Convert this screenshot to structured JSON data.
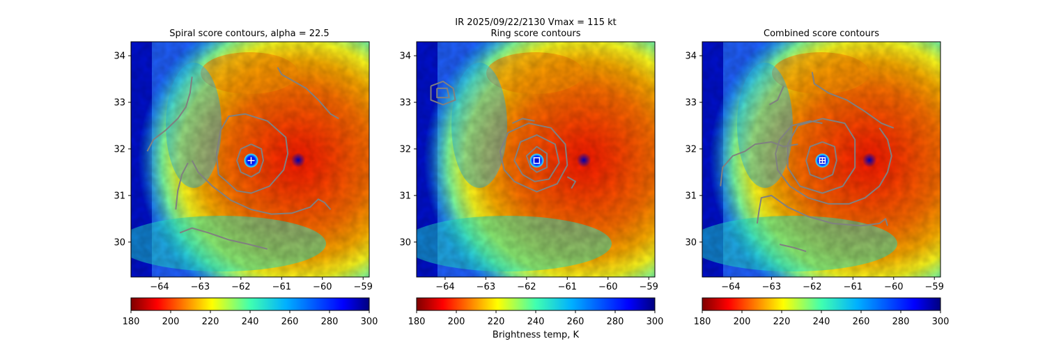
{
  "suptitle": {
    "line1": "IR  2025/09/22/2130    Vmax = 115 kt"
  },
  "chart_data": [
    {
      "type": "heatmap",
      "title": "Spiral score contours, alpha = 22.5",
      "xlim": [
        -64.7,
        -58.85
      ],
      "ylim": [
        29.25,
        34.3
      ],
      "xticks": [
        -64,
        -63,
        -62,
        -61,
        -60,
        -59
      ],
      "yticks": [
        30,
        31,
        32,
        33,
        34
      ],
      "colormap": "jet_r",
      "colorbar": {
        "ticks": [
          180,
          200,
          220,
          240,
          260,
          280,
          300
        ],
        "range": [
          180,
          300
        ]
      },
      "storm_center": {
        "x": -61.75,
        "y": 31.75,
        "marker": "plus"
      },
      "contour_color": "#808080",
      "contours": [
        [
          [
            -61.1,
            33.75
          ],
          [
            -61,
            33.6
          ],
          [
            -60.7,
            33.45
          ],
          [
            -60.4,
            33.3
          ],
          [
            -60.1,
            33.05
          ],
          [
            -59.8,
            32.75
          ],
          [
            -59.6,
            32.65
          ]
        ],
        [
          [
            -63.2,
            33.55
          ],
          [
            -63.25,
            33.2
          ],
          [
            -63.35,
            32.9
          ],
          [
            -63.55,
            32.65
          ],
          [
            -63.85,
            32.4
          ],
          [
            -64.15,
            32.2
          ],
          [
            -64.3,
            31.95
          ]
        ],
        [
          [
            -62.35,
            31.3
          ],
          [
            -62.55,
            31.45
          ],
          [
            -62.6,
            31.9
          ],
          [
            -62.5,
            32.4
          ],
          [
            -62.3,
            32.7
          ],
          [
            -61.9,
            32.75
          ],
          [
            -61.35,
            32.6
          ],
          [
            -60.9,
            32.25
          ],
          [
            -60.85,
            31.9
          ],
          [
            -60.95,
            31.55
          ],
          [
            -61.3,
            31.2
          ],
          [
            -61.75,
            31.05
          ],
          [
            -62.1,
            31.1
          ],
          [
            -62.35,
            31.3
          ]
        ],
        [
          [
            -61.75,
            32.1
          ],
          [
            -61.5,
            32.0
          ],
          [
            -61.45,
            31.75
          ],
          [
            -61.55,
            31.5
          ],
          [
            -61.75,
            31.4
          ],
          [
            -62.0,
            31.5
          ],
          [
            -62.1,
            31.75
          ],
          [
            -62.0,
            32.0
          ],
          [
            -61.75,
            32.1
          ]
        ],
        [
          [
            -63.2,
            31.75
          ],
          [
            -63.05,
            31.5
          ],
          [
            -62.7,
            31.2
          ],
          [
            -62.25,
            30.9
          ],
          [
            -61.75,
            30.7
          ],
          [
            -61.25,
            30.6
          ],
          [
            -60.75,
            30.62
          ],
          [
            -60.3,
            30.75
          ],
          [
            -60.1,
            30.92
          ],
          [
            -59.95,
            30.85
          ],
          [
            -59.8,
            30.7
          ]
        ],
        [
          [
            -63.3,
            31.7
          ],
          [
            -63.45,
            31.45
          ],
          [
            -63.55,
            31.1
          ],
          [
            -63.6,
            30.7
          ]
        ],
        [
          [
            -63.5,
            30.2
          ],
          [
            -63.2,
            30.3
          ],
          [
            -62.8,
            30.2
          ],
          [
            -62.3,
            30.05
          ],
          [
            -61.8,
            29.95
          ],
          [
            -61.35,
            29.85
          ]
        ]
      ]
    },
    {
      "type": "heatmap",
      "title": "Ring score contours",
      "xlim": [
        -64.7,
        -58.85
      ],
      "ylim": [
        29.25,
        34.3
      ],
      "xticks": [
        -64,
        -63,
        -62,
        -61,
        -60,
        -59
      ],
      "yticks": [
        30,
        31,
        32,
        33,
        34
      ],
      "colormap": "jet_r",
      "colorbar": {
        "ticks": [
          180,
          200,
          220,
          240,
          260,
          280,
          300
        ],
        "range": [
          180,
          300
        ],
        "label": "Brightness temp, K"
      },
      "storm_center": {
        "x": -61.75,
        "y": 31.75,
        "marker": "square"
      },
      "contour_color": "#808080",
      "contours": [
        [
          [
            -64.35,
            33.35
          ],
          [
            -64.05,
            33.45
          ],
          [
            -63.8,
            33.3
          ],
          [
            -63.75,
            33.05
          ],
          [
            -64.05,
            32.95
          ],
          [
            -64.35,
            33.05
          ],
          [
            -64.35,
            33.35
          ]
        ],
        [
          [
            -64.2,
            33.3
          ],
          [
            -63.95,
            33.3
          ],
          [
            -63.9,
            33.1
          ],
          [
            -64.2,
            33.1
          ],
          [
            -64.2,
            33.3
          ]
        ],
        [
          [
            -62.3,
            31.3
          ],
          [
            -62.55,
            31.55
          ],
          [
            -62.65,
            31.95
          ],
          [
            -62.45,
            32.35
          ],
          [
            -61.95,
            32.55
          ],
          [
            -61.4,
            32.45
          ],
          [
            -61.05,
            32.1
          ],
          [
            -61.0,
            31.65
          ],
          [
            -61.25,
            31.25
          ],
          [
            -61.75,
            31.08
          ],
          [
            -62.3,
            31.3
          ]
        ],
        [
          [
            -62.1,
            31.45
          ],
          [
            -62.3,
            31.75
          ],
          [
            -62.15,
            32.15
          ],
          [
            -61.75,
            32.3
          ],
          [
            -61.3,
            32.1
          ],
          [
            -61.2,
            31.7
          ],
          [
            -61.45,
            31.35
          ],
          [
            -61.8,
            31.3
          ],
          [
            -62.1,
            31.45
          ]
        ],
        [
          [
            -61.9,
            31.6
          ],
          [
            -62.0,
            31.85
          ],
          [
            -61.75,
            32.05
          ],
          [
            -61.5,
            31.9
          ],
          [
            -61.5,
            31.6
          ],
          [
            -61.75,
            31.5
          ],
          [
            -61.9,
            31.6
          ]
        ],
        [
          [
            -62.35,
            32.55
          ],
          [
            -62.1,
            32.65
          ],
          [
            -61.8,
            32.6
          ]
        ],
        [
          [
            -61.0,
            31.4
          ],
          [
            -60.8,
            31.3
          ],
          [
            -60.9,
            31.15
          ]
        ]
      ]
    },
    {
      "type": "heatmap",
      "title": "Combined score contours",
      "xlim": [
        -64.7,
        -58.85
      ],
      "ylim": [
        29.25,
        34.3
      ],
      "xticks": [
        -64,
        -63,
        -62,
        -61,
        -60,
        -59
      ],
      "yticks": [
        30,
        31,
        32,
        33,
        34
      ],
      "colormap": "jet_r",
      "colorbar": {
        "ticks": [
          180,
          200,
          220,
          240,
          260,
          280,
          300
        ],
        "range": [
          180,
          300
        ]
      },
      "storm_center": {
        "x": -61.75,
        "y": 31.75,
        "marker": "square-plus"
      },
      "contour_color": "#808080",
      "contours": [
        [
          [
            -62.0,
            33.65
          ],
          [
            -61.95,
            33.4
          ],
          [
            -61.6,
            33.2
          ],
          [
            -61.15,
            33.05
          ],
          [
            -60.7,
            32.8
          ],
          [
            -60.3,
            32.55
          ],
          [
            -60.0,
            32.45
          ]
        ],
        [
          [
            -62.7,
            33.35
          ],
          [
            -62.85,
            33.05
          ],
          [
            -63.05,
            32.95
          ]
        ],
        [
          [
            -61.75,
            32.65
          ],
          [
            -61.2,
            32.55
          ],
          [
            -60.95,
            32.2
          ],
          [
            -60.95,
            31.6
          ],
          [
            -61.25,
            31.2
          ],
          [
            -61.75,
            31.05
          ],
          [
            -62.3,
            31.2
          ],
          [
            -62.6,
            31.6
          ],
          [
            -62.6,
            32.1
          ],
          [
            -62.35,
            32.5
          ],
          [
            -61.75,
            32.65
          ]
        ],
        [
          [
            -61.75,
            32.15
          ],
          [
            -61.45,
            32.05
          ],
          [
            -61.4,
            31.75
          ],
          [
            -61.5,
            31.45
          ],
          [
            -61.75,
            31.35
          ],
          [
            -62.05,
            31.45
          ],
          [
            -62.15,
            31.75
          ],
          [
            -62.05,
            32.05
          ],
          [
            -61.75,
            32.15
          ]
        ],
        [
          [
            -61.75,
            32.55
          ],
          [
            -62.05,
            32.6
          ],
          [
            -62.5,
            32.5
          ],
          [
            -62.8,
            32.2
          ],
          [
            -62.9,
            31.9
          ],
          [
            -62.85,
            31.55
          ],
          [
            -62.55,
            31.2
          ],
          [
            -62.1,
            30.95
          ],
          [
            -61.6,
            30.82
          ],
          [
            -61.1,
            30.82
          ],
          [
            -60.7,
            30.95
          ],
          [
            -60.35,
            31.2
          ],
          [
            -60.15,
            31.5
          ],
          [
            -60.05,
            31.85
          ],
          [
            -60.15,
            32.2
          ],
          [
            -60.35,
            32.45
          ]
        ],
        [
          [
            -62.35,
            32.1
          ],
          [
            -62.7,
            32.05
          ],
          [
            -63.0,
            32.15
          ],
          [
            -63.4,
            32.1
          ],
          [
            -63.65,
            31.95
          ],
          [
            -63.95,
            31.85
          ],
          [
            -64.2,
            31.6
          ],
          [
            -64.25,
            31.2
          ]
        ],
        [
          [
            -63.35,
            30.4
          ],
          [
            -63.3,
            30.7
          ],
          [
            -63.25,
            30.95
          ],
          [
            -63.0,
            31.0
          ],
          [
            -62.6,
            30.75
          ],
          [
            -62.1,
            30.55
          ],
          [
            -61.5,
            30.4
          ],
          [
            -60.8,
            30.35
          ],
          [
            -60.35,
            30.4
          ],
          [
            -60.2,
            30.5
          ],
          [
            -60.15,
            30.35
          ]
        ],
        [
          [
            -62.8,
            29.95
          ],
          [
            -62.45,
            29.88
          ],
          [
            -62.15,
            29.8
          ]
        ]
      ]
    }
  ]
}
